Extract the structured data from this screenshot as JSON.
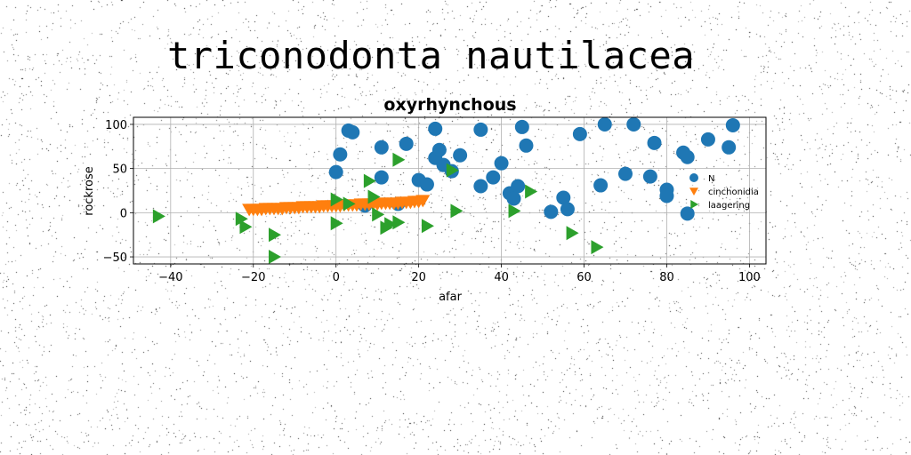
{
  "figure": {
    "suptitle": "triconodonta nautilacea"
  },
  "chart_data": {
    "type": "scatter",
    "title": "oxyrhynchous",
    "xlabel": "afar",
    "ylabel": "rockrose",
    "xlim": [
      -49,
      104
    ],
    "ylim": [
      -58,
      108
    ],
    "xticks": [
      -40,
      -20,
      0,
      20,
      40,
      60,
      80,
      100
    ],
    "yticks": [
      -50,
      0,
      50,
      100
    ],
    "grid": true,
    "legend_position": "right",
    "series": [
      {
        "name": "N",
        "marker": "circle",
        "color": "#1f77b4",
        "points": [
          [
            0,
            46
          ],
          [
            1,
            66
          ],
          [
            3,
            93
          ],
          [
            4,
            91
          ],
          [
            7,
            8
          ],
          [
            11,
            40
          ],
          [
            11,
            74
          ],
          [
            15,
            10
          ],
          [
            17,
            78
          ],
          [
            20,
            37
          ],
          [
            22,
            32
          ],
          [
            24,
            62
          ],
          [
            24,
            95
          ],
          [
            25,
            71
          ],
          [
            26,
            54
          ],
          [
            28,
            47
          ],
          [
            30,
            65
          ],
          [
            35,
            30
          ],
          [
            35,
            94
          ],
          [
            38,
            40
          ],
          [
            40,
            56
          ],
          [
            42,
            22
          ],
          [
            43,
            16
          ],
          [
            44,
            30
          ],
          [
            45,
            97
          ],
          [
            46,
            76
          ],
          [
            52,
            1
          ],
          [
            55,
            17
          ],
          [
            56,
            4
          ],
          [
            59,
            89
          ],
          [
            64,
            31
          ],
          [
            65,
            100
          ],
          [
            70,
            44
          ],
          [
            72,
            100
          ],
          [
            76,
            41
          ],
          [
            77,
            79
          ],
          [
            80,
            26
          ],
          [
            80,
            19
          ],
          [
            84,
            68
          ],
          [
            85,
            63
          ],
          [
            85,
            -1
          ],
          [
            90,
            83
          ],
          [
            95,
            74
          ],
          [
            96,
            99
          ]
        ]
      },
      {
        "name": "cinchonidia",
        "marker": "triangle-down",
        "color": "#ff7f0e",
        "points": [
          [
            -21,
            4
          ],
          [
            -20,
            4
          ],
          [
            -19,
            4
          ],
          [
            -18,
            4
          ],
          [
            -17,
            5
          ],
          [
            -16,
            5
          ],
          [
            -15,
            5
          ],
          [
            -14,
            5
          ],
          [
            -13,
            5
          ],
          [
            -12,
            6
          ],
          [
            -11,
            6
          ],
          [
            -10,
            6
          ],
          [
            -9,
            6
          ],
          [
            -8,
            7
          ],
          [
            -7,
            7
          ],
          [
            -6,
            7
          ],
          [
            -5,
            7
          ],
          [
            -4,
            7
          ],
          [
            -3,
            8
          ],
          [
            -2,
            8
          ],
          [
            -1,
            8
          ],
          [
            0,
            8
          ],
          [
            1,
            8
          ],
          [
            2,
            9
          ],
          [
            3,
            9
          ],
          [
            4,
            9
          ],
          [
            5,
            9
          ],
          [
            6,
            10
          ],
          [
            7,
            10
          ],
          [
            8,
            10
          ],
          [
            9,
            10
          ],
          [
            10,
            10
          ],
          [
            11,
            11
          ],
          [
            12,
            11
          ],
          [
            13,
            11
          ],
          [
            14,
            11
          ],
          [
            15,
            11
          ],
          [
            16,
            12
          ],
          [
            17,
            12
          ],
          [
            18,
            12
          ],
          [
            19,
            13
          ],
          [
            20,
            13
          ],
          [
            21,
            14
          ]
        ]
      },
      {
        "name": "laagering",
        "marker": "triangle-right",
        "color": "#2ca02c",
        "points": [
          [
            -43,
            -4
          ],
          [
            -23,
            -7
          ],
          [
            -22,
            -16
          ],
          [
            -15,
            -25
          ],
          [
            -15,
            -50
          ],
          [
            0,
            15
          ],
          [
            0,
            -12
          ],
          [
            3,
            10
          ],
          [
            8,
            36
          ],
          [
            9,
            18
          ],
          [
            10,
            -2
          ],
          [
            12,
            -17
          ],
          [
            13,
            -13
          ],
          [
            15,
            -11
          ],
          [
            15,
            60
          ],
          [
            22,
            -15
          ],
          [
            28,
            48
          ],
          [
            29,
            2
          ],
          [
            43,
            2
          ],
          [
            47,
            24
          ],
          [
            57,
            -23
          ],
          [
            63,
            -39
          ]
        ]
      }
    ]
  }
}
